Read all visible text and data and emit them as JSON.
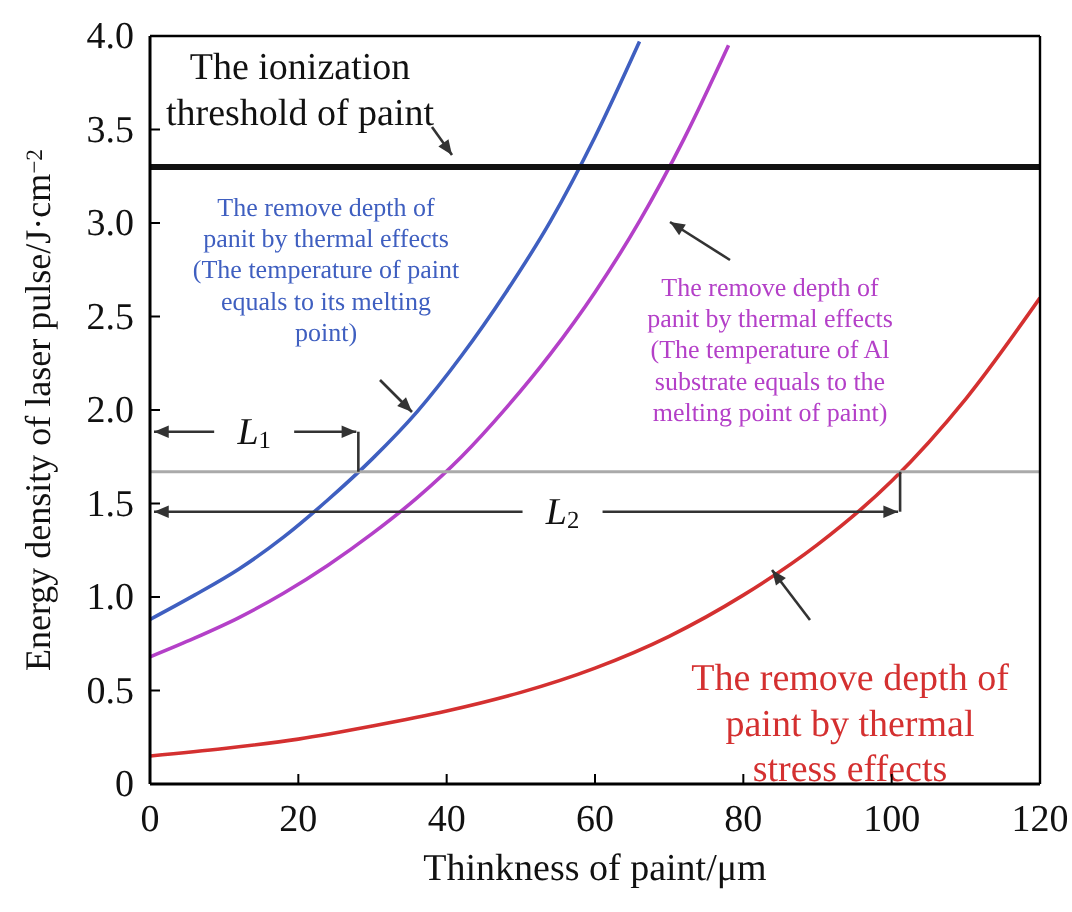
{
  "chart_data": {
    "type": "line",
    "xlabel": "Thinkness of paint/μm",
    "ylabel": "Energy density of laser pulse/J·cm$^{−2}$",
    "xlim": [
      0,
      120
    ],
    "xticks": [
      0,
      20,
      40,
      60,
      80,
      100,
      120
    ],
    "ylim": [
      0,
      4
    ],
    "yticks": [
      0,
      0.5,
      {
        "value": 1,
        "label": "1.0"
      },
      1.5,
      {
        "value": 2,
        "label": "2.0"
      },
      2.5,
      {
        "value": 3,
        "label": "3.0"
      },
      3.5,
      {
        "value": 4,
        "label": "4.0"
      }
    ],
    "marker": "none",
    "line_style": "solid",
    "series": [
      {
        "name": "The remove depth of\npanit by thermal effects\n(The temperature of paint\nequals to its melting\npoint)",
        "color": "#3f5fc0",
        "x": [
          0,
          6,
          12,
          18,
          24,
          30,
          36,
          42,
          48,
          54,
          60,
          66
        ],
        "values": [
          0.88,
          1.01,
          1.15,
          1.32,
          1.52,
          1.74,
          1.99,
          2.29,
          2.63,
          3.01,
          3.46,
          3.97
        ]
      },
      {
        "name": "The remove depth of\npanit by thermal effects\n(The temperature of Al\nsubstrate equals to the\nmelting point of paint)",
        "color": "#b440c8",
        "x": [
          0,
          6,
          12,
          18,
          24,
          30,
          36,
          42,
          48,
          54,
          60,
          66,
          72,
          78
        ],
        "values": [
          0.68,
          0.78,
          0.89,
          1.02,
          1.17,
          1.34,
          1.53,
          1.75,
          2.01,
          2.3,
          2.63,
          3.01,
          3.45,
          3.95
        ]
      },
      {
        "name": "The remove depth of\npaint by thermal\nstress effects",
        "color": "#d43030",
        "x": [
          0,
          10,
          20,
          30,
          40,
          50,
          60,
          70,
          80,
          90,
          100,
          110,
          120
        ],
        "values": [
          0.15,
          0.19,
          0.24,
          0.31,
          0.39,
          0.49,
          0.62,
          0.79,
          1.01,
          1.28,
          1.62,
          2.06,
          2.6
        ]
      }
    ],
    "ref_lines": [
      {
        "axis": "y",
        "value": 3.3,
        "label": "The ionization\nthreshold of paint",
        "color": "#111111"
      },
      {
        "axis": "y",
        "value": 1.67,
        "color": "#aaaaaa"
      }
    ],
    "annotations": [
      "L$_{1}$",
      "L$_{2}$"
    ]
  }
}
